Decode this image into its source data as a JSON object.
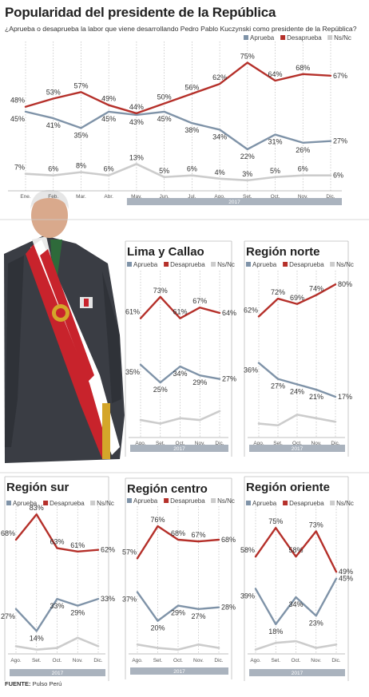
{
  "title": "Popularidad del presidente de la República",
  "subtitle": "¿Aprueba o desaprueba la labor que viene desarrollando Pedro Pablo Kuczynski como presidente de la República?",
  "source": {
    "label": "FUENTE:",
    "value": "Pulso Perú"
  },
  "colors": {
    "aprueba": "#7f93a8",
    "desaprueba": "#b5302a",
    "ns": "#cccccc",
    "band": "#aab3be"
  },
  "photo": {
    "icon": "president-photo"
  },
  "chart_data": [
    {
      "id": "national",
      "type": "line",
      "title": "",
      "year": "2017",
      "categories": [
        "Ene.",
        "Feb.",
        "Mar.",
        "Abr.",
        "May.",
        "Jun.",
        "Jul.",
        "Ago.",
        "Set.",
        "Oct.",
        "Nov.",
        "Dic."
      ],
      "legend": [
        "Aprueba",
        "Desaprueba",
        "Ns/Nc"
      ],
      "series": [
        {
          "name": "Aprueba",
          "key": "aprueba",
          "values": [
            45,
            41,
            35,
            45,
            43,
            45,
            38,
            34,
            22,
            31,
            26,
            27
          ]
        },
        {
          "name": "Desaprueba",
          "key": "desaprueba",
          "values": [
            48,
            53,
            57,
            49,
            44,
            50,
            56,
            62,
            75,
            64,
            68,
            67
          ]
        },
        {
          "name": "Ns/Nc",
          "key": "ns",
          "values": [
            7,
            6,
            8,
            6,
            13,
            5,
            6,
            4,
            3,
            5,
            6,
            6
          ]
        }
      ],
      "labels": [
        [
          "45%",
          "41%",
          "35%",
          "45%",
          "43%",
          "45%",
          "38%",
          "34%",
          "22%",
          "31%",
          "26%",
          "27%"
        ],
        [
          "48%",
          "53%",
          "57%",
          "49%",
          "44%",
          "50%",
          "56%",
          "62%",
          "75%",
          "64%",
          "68%",
          "67%"
        ],
        [
          "7%",
          "6%",
          "8%",
          "6%",
          "13%",
          "5%",
          "6%",
          "4%",
          "3%",
          "5%",
          "6%",
          "6%"
        ]
      ]
    },
    {
      "id": "lima",
      "type": "line",
      "title": "Lima y Callao",
      "year": "2017",
      "categories": [
        "Ago.",
        "Set.",
        "Oct.",
        "Nov.",
        "Dic."
      ],
      "legend": [
        "Aprueba",
        "Desaprueba",
        "Ns/Nc"
      ],
      "series": [
        {
          "name": "Aprueba",
          "key": "aprueba",
          "values": [
            35,
            25,
            34,
            29,
            27
          ]
        },
        {
          "name": "Desaprueba",
          "key": "desaprueba",
          "values": [
            61,
            73,
            61,
            67,
            64
          ]
        },
        {
          "name": "Ns/Nc",
          "key": "ns",
          "values": [
            4,
            2,
            5,
            4,
            9
          ]
        }
      ],
      "labels": [
        [
          "35%",
          "25%",
          "34%",
          "29%",
          "27%"
        ],
        [
          "61%",
          "73%",
          "61%",
          "67%",
          "64%"
        ]
      ]
    },
    {
      "id": "norte",
      "type": "line",
      "title": "Región norte",
      "year": "2017",
      "categories": [
        "Ago.",
        "Set.",
        "Oct.",
        "Nov.",
        "Dic."
      ],
      "legend": [
        "Aprueba",
        "Desaprueba",
        "Ns/Nc"
      ],
      "series": [
        {
          "name": "Aprueba",
          "key": "aprueba",
          "values": [
            36,
            27,
            24,
            21,
            17
          ]
        },
        {
          "name": "Desaprueba",
          "key": "desaprueba",
          "values": [
            62,
            72,
            69,
            74,
            80
          ]
        },
        {
          "name": "Ns/Nc",
          "key": "ns",
          "values": [
            2,
            1,
            7,
            5,
            3
          ]
        }
      ],
      "labels": [
        [
          "36%",
          "27%",
          "24%",
          "21%",
          "17%"
        ],
        [
          "62%",
          "72%",
          "69%",
          "74%",
          "80%"
        ]
      ]
    },
    {
      "id": "sur",
      "type": "line",
      "title": "Región sur",
      "year": "2017",
      "categories": [
        "Ago.",
        "Set.",
        "Oct.",
        "Nov.",
        "Dic."
      ],
      "legend": [
        "Aprueba",
        "Desaprueba",
        "Ns/Nc"
      ],
      "series": [
        {
          "name": "Aprueba",
          "key": "aprueba",
          "values": [
            27,
            14,
            33,
            29,
            33
          ]
        },
        {
          "name": "Desaprueba",
          "key": "desaprueba",
          "values": [
            68,
            83,
            63,
            61,
            62
          ]
        },
        {
          "name": "Ns/Nc",
          "key": "ns",
          "values": [
            5,
            3,
            4,
            10,
            5
          ]
        }
      ],
      "labels": [
        [
          "27%",
          "14%",
          "33%",
          "29%",
          "33%"
        ],
        [
          "68%",
          "83%",
          "63%",
          "61%",
          "62%"
        ]
      ]
    },
    {
      "id": "centro",
      "type": "line",
      "title": "Región centro",
      "year": "2017",
      "categories": [
        "Ago.",
        "Set.",
        "Oct.",
        "Nov.",
        "Dic."
      ],
      "legend": [
        "Aprueba",
        "Desaprueba",
        "Ns/Nc"
      ],
      "series": [
        {
          "name": "Aprueba",
          "key": "aprueba",
          "values": [
            37,
            20,
            29,
            27,
            28
          ]
        },
        {
          "name": "Desaprueba",
          "key": "desaprueba",
          "values": [
            57,
            76,
            68,
            67,
            68
          ]
        },
        {
          "name": "Ns/Nc",
          "key": "ns",
          "values": [
            6,
            4,
            3,
            6,
            4
          ]
        }
      ],
      "labels": [
        [
          "37%",
          "20%",
          "29%",
          "27%",
          "28%"
        ],
        [
          "57%",
          "76%",
          "68%",
          "67%",
          "68%"
        ]
      ]
    },
    {
      "id": "oriente",
      "type": "line",
      "title": "Región oriente",
      "year": "2017",
      "categories": [
        "Ago.",
        "Set.",
        "Oct.",
        "Nov.",
        "Dic."
      ],
      "legend": [
        "Aprueba",
        "Desaprueba",
        "Ns/Nc"
      ],
      "series": [
        {
          "name": "Aprueba",
          "key": "aprueba",
          "values": [
            39,
            18,
            34,
            23,
            45
          ]
        },
        {
          "name": "Desaprueba",
          "key": "desaprueba",
          "values": [
            58,
            75,
            58,
            73,
            49
          ]
        },
        {
          "name": "Ns/Nc",
          "key": "ns",
          "values": [
            3,
            7,
            8,
            4,
            6
          ]
        }
      ],
      "labels": [
        [
          "39%",
          "18%",
          "34%",
          "23%",
          "45%"
        ],
        [
          "58%",
          "75%",
          "58%",
          "73%",
          "49%"
        ]
      ]
    }
  ]
}
